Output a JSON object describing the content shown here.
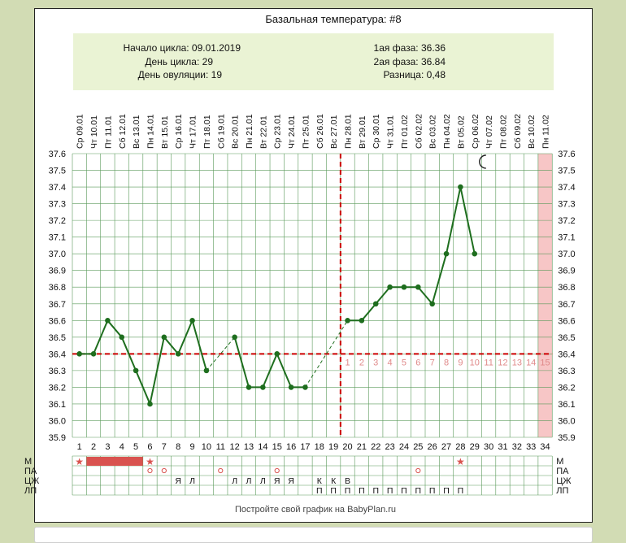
{
  "title": "Базальная температура: #8",
  "summary": {
    "cycle_start": "Начало цикла: 09.01.2019",
    "cycle_day": "День цикла: 29",
    "ovulation_day": "День овуляции: 19",
    "phase1": "1ая фаза: 36.36",
    "phase2": "2ая фаза: 36.84",
    "difference": "Разница: 0,48"
  },
  "footer": "Постройте свой график на BabyPlan.ru",
  "colors": {
    "line": "#1e6e1e",
    "coverline": "#cc0000",
    "summary_bg": "#eaf3d4",
    "period": "#d9534f",
    "forecast": "#f7c6c6",
    "grid": "#5a9a5a",
    "phase_numbers": "#e08a8a"
  },
  "moon_icon": "crescent-moon-icon",
  "chart_data": {
    "type": "line",
    "ylim": [
      35.9,
      37.6
    ],
    "y_ticks": [
      "37.6",
      "37.5",
      "37.4",
      "37.3",
      "37.2",
      "37.1",
      "37.0",
      "36.9",
      "36.8",
      "36.7",
      "36.6",
      "36.5",
      "36.4",
      "36.3",
      "36.2",
      "36.1",
      "36.0",
      "35.9"
    ],
    "days": [
      "1",
      "2",
      "3",
      "4",
      "5",
      "6",
      "7",
      "8",
      "9",
      "10",
      "11",
      "12",
      "13",
      "14",
      "15",
      "16",
      "17",
      "18",
      "19",
      "20",
      "21",
      "22",
      "23",
      "24",
      "25",
      "26",
      "27",
      "28",
      "29",
      "30",
      "31",
      "32",
      "33",
      "34"
    ],
    "dates": [
      "Ср 09.01",
      "Чт 10.01",
      "Пт 11.01",
      "Сб 12.01",
      "Вс 13.01",
      "Пн 14.01",
      "Вт 15.01",
      "Ср 16.01",
      "Чт 17.01",
      "Пт 18.01",
      "Сб 19.01",
      "Вс 20.01",
      "Пн 21.01",
      "Вт 22.01",
      "Ср 23.01",
      "Чт 24.01",
      "Пт 25.01",
      "Сб 26.01",
      "Вс 27.01",
      "Пн 28.01",
      "Вт 29.01",
      "Ср 30.01",
      "Чт 31.01",
      "Пт 01.02",
      "Сб 02.02",
      "Вс 03.02",
      "Пн 04.02",
      "Вт 05.02",
      "Ср 06.02",
      "Чт 07.02",
      "Пт 08.02",
      "Сб 09.02",
      "Вс 10.02",
      "Пн 11.02"
    ],
    "temperatures": [
      36.4,
      36.4,
      36.6,
      36.5,
      36.3,
      36.1,
      36.5,
      36.4,
      36.6,
      36.3,
      null,
      36.5,
      36.2,
      36.2,
      36.4,
      36.2,
      36.2,
      null,
      null,
      36.6,
      36.6,
      36.7,
      36.8,
      36.8,
      36.8,
      36.7,
      37.0,
      37.4,
      37.0,
      null,
      null,
      null,
      null,
      null
    ],
    "coverline": 36.4,
    "ovulation_day": 19,
    "forecast_day": 34,
    "moon_day": 29,
    "phase_days": [
      "1",
      "2",
      "3",
      "4",
      "5",
      "6",
      "7",
      "8",
      "9",
      "10",
      "11",
      "12",
      "13",
      "14",
      "15"
    ],
    "rows": {
      "labels": [
        "М",
        "ПА",
        "ЦЖ",
        "ЛП"
      ],
      "m_stars": [
        1,
        6,
        28
      ],
      "m_period": [
        2,
        5
      ],
      "pa_circles": [
        6,
        7,
        11,
        15,
        25
      ],
      "cz": {
        "8": "Я",
        "9": "Л",
        "12": "Л",
        "13": "Л",
        "14": "Л",
        "15": "Я",
        "16": "Я",
        "18": "К",
        "19": "К",
        "20": "В"
      },
      "lp_start": 18,
      "lp_end": 28,
      "lp_mark": "П"
    }
  }
}
